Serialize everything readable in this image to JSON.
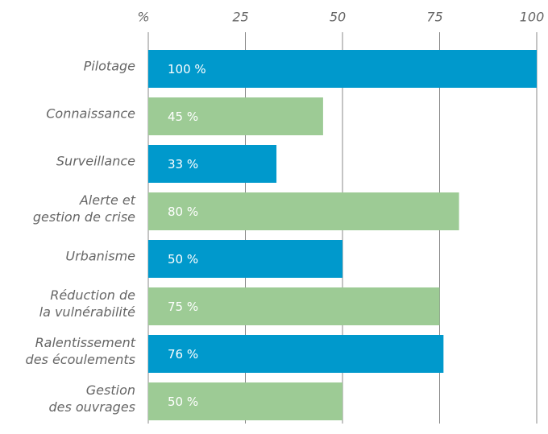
{
  "chart_data": {
    "type": "bar",
    "orientation": "horizontal",
    "categories": [
      "Pilotage",
      "Connaissance",
      "Surveillance",
      "Alerte et\ngestion de crise",
      "Urbanisme",
      "Réduction de\nla vulnérabilité",
      "Ralentissement\ndes écoulements",
      "Gestion\ndes ouvrages"
    ],
    "values": [
      100,
      45,
      33,
      80,
      50,
      75,
      76,
      50
    ],
    "value_labels": [
      "100 %",
      "45 %",
      "33 %",
      "80 %",
      "50 %",
      "75 %",
      "76 %",
      "50 %"
    ],
    "colors": [
      "#0099cc",
      "#9dcb95",
      "#0099cc",
      "#9dcb95",
      "#0099cc",
      "#9dcb95",
      "#0099cc",
      "#9dcb95"
    ],
    "xlim": [
      0,
      100
    ],
    "xticks": [
      {
        "value": 0,
        "label": "%"
      },
      25,
      50,
      75,
      100
    ],
    "grid": true
  }
}
